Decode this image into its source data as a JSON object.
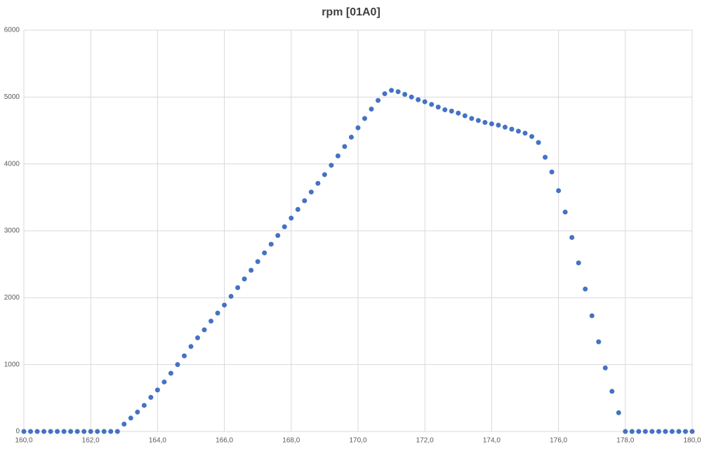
{
  "chart_data": {
    "type": "scatter",
    "title": "rpm [01A0]",
    "x": [
      160.0,
      160.2,
      160.4,
      160.6,
      160.8,
      161.0,
      161.2,
      161.4,
      161.6,
      161.8,
      162.0,
      162.2,
      162.4,
      162.6,
      162.8,
      163.0,
      163.2,
      163.4,
      163.6,
      163.8,
      164.0,
      164.2,
      164.4,
      164.6,
      164.8,
      165.0,
      165.2,
      165.4,
      165.6,
      165.8,
      166.0,
      166.2,
      166.4,
      166.6,
      166.8,
      167.0,
      167.2,
      167.4,
      167.6,
      167.8,
      168.0,
      168.2,
      168.4,
      168.6,
      168.8,
      169.0,
      169.2,
      169.4,
      169.6,
      169.8,
      170.0,
      170.2,
      170.4,
      170.6,
      170.8,
      171.0,
      171.2,
      171.4,
      171.6,
      171.8,
      172.0,
      172.2,
      172.4,
      172.6,
      172.8,
      173.0,
      173.2,
      173.4,
      173.6,
      173.8,
      174.0,
      174.2,
      174.4,
      174.6,
      174.8,
      175.0,
      175.2,
      175.4,
      175.6,
      175.8,
      176.0,
      176.2,
      176.4,
      176.6,
      176.8,
      177.0,
      177.2,
      177.4,
      177.6,
      177.8,
      178.0,
      178.2,
      178.4,
      178.6,
      178.8,
      179.0,
      179.2,
      179.4,
      179.6,
      179.8,
      180.0
    ],
    "series": [
      {
        "name": "rpm",
        "color": "#4472c4",
        "values": [
          0,
          0,
          0,
          0,
          0,
          0,
          0,
          0,
          0,
          0,
          0,
          0,
          0,
          0,
          0,
          110,
          200,
          290,
          390,
          510,
          620,
          740,
          870,
          1000,
          1130,
          1270,
          1400,
          1520,
          1650,
          1770,
          1890,
          2020,
          2150,
          2280,
          2410,
          2540,
          2670,
          2800,
          2930,
          3060,
          3190,
          3320,
          3450,
          3580,
          3710,
          3840,
          3980,
          4120,
          4260,
          4400,
          4540,
          4680,
          4820,
          4950,
          5050,
          5100,
          5080,
          5040,
          5000,
          4960,
          4930,
          4890,
          4850,
          4810,
          4790,
          4760,
          4720,
          4680,
          4650,
          4620,
          4600,
          4580,
          4550,
          4520,
          4490,
          4460,
          4410,
          4320,
          4100,
          3880,
          3600,
          3280,
          2900,
          2520,
          2130,
          1730,
          1340,
          950,
          600,
          280,
          0,
          0,
          0,
          0,
          0,
          0,
          0,
          0,
          0,
          0,
          0
        ]
      }
    ],
    "xlim": [
      160,
      180
    ],
    "xticks": [
      {
        "value": 160,
        "label": "160,0"
      },
      {
        "value": 162,
        "label": "162,0"
      },
      {
        "value": 164,
        "label": "164,0"
      },
      {
        "value": 166,
        "label": "166,0"
      },
      {
        "value": 168,
        "label": "168,0"
      },
      {
        "value": 170,
        "label": "170,0"
      },
      {
        "value": 172,
        "label": "172,0"
      },
      {
        "value": 174,
        "label": "174,0"
      },
      {
        "value": 176,
        "label": "176,0"
      },
      {
        "value": 178,
        "label": "178,0"
      },
      {
        "value": 180,
        "label": "180,0"
      }
    ],
    "ylim": [
      0,
      6000
    ],
    "yticks": [
      0,
      1000,
      2000,
      3000,
      4000,
      5000,
      6000
    ],
    "grid": true
  }
}
